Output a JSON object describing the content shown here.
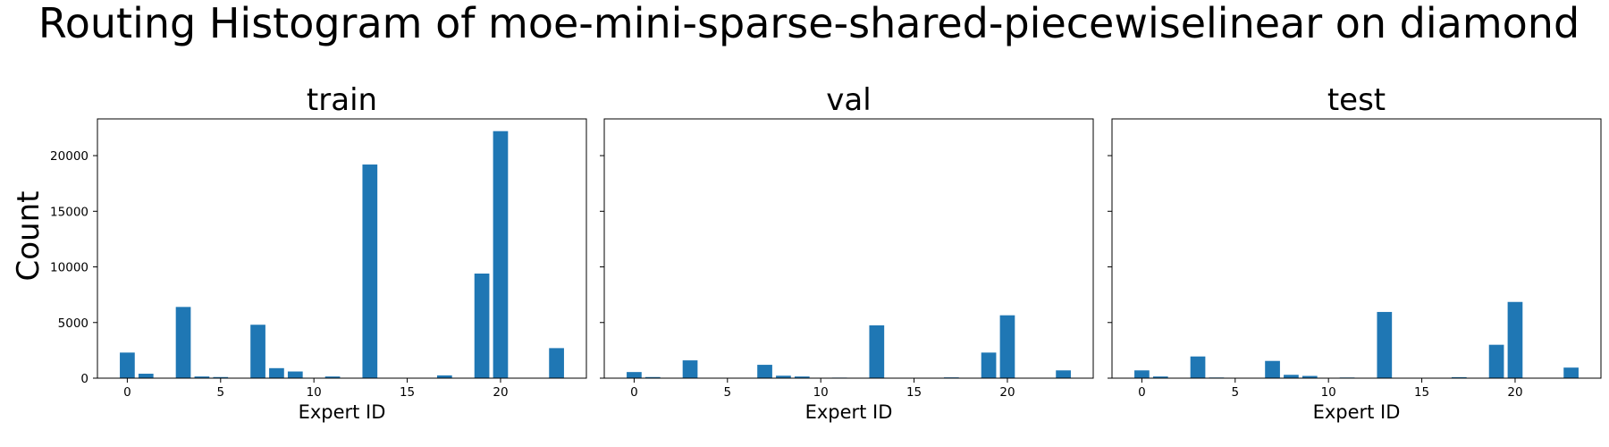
{
  "figure": {
    "title": "Routing Histogram of moe-mini-sparse-shared-piecewiselinear on diamond",
    "ylabel": "Count"
  },
  "colors": {
    "bar": "#1f77b4",
    "axis": "#000000"
  },
  "chart_data": [
    {
      "type": "bar",
      "title": "train",
      "xlabel": "Expert ID",
      "ylabel": "Count",
      "x": [
        0,
        1,
        2,
        3,
        4,
        5,
        6,
        7,
        8,
        9,
        10,
        11,
        12,
        13,
        14,
        15,
        16,
        17,
        18,
        19,
        20,
        21,
        22,
        23
      ],
      "values": [
        2300,
        400,
        0,
        6400,
        150,
        100,
        0,
        4800,
        900,
        600,
        0,
        150,
        0,
        19200,
        0,
        0,
        0,
        250,
        0,
        9400,
        22200,
        0,
        0,
        2700
      ],
      "xticks": [
        0,
        5,
        10,
        15,
        20
      ],
      "yticks": [
        0,
        5000,
        10000,
        15000,
        20000
      ],
      "ylim": [
        0,
        23300
      ],
      "xlim": [
        -1.6,
        24.6
      ],
      "grid": false
    },
    {
      "type": "bar",
      "title": "val",
      "xlabel": "Expert ID",
      "ylabel": "Count",
      "x": [
        0,
        1,
        2,
        3,
        4,
        5,
        6,
        7,
        8,
        9,
        10,
        11,
        12,
        13,
        14,
        15,
        16,
        17,
        18,
        19,
        20,
        21,
        22,
        23
      ],
      "values": [
        550,
        100,
        0,
        1600,
        40,
        20,
        0,
        1200,
        220,
        150,
        0,
        50,
        0,
        4750,
        0,
        0,
        0,
        70,
        0,
        2300,
        5650,
        0,
        0,
        700
      ],
      "xticks": [
        0,
        5,
        10,
        15,
        20
      ],
      "yticks": [
        0,
        5000,
        10000,
        15000,
        20000
      ],
      "ylim": [
        0,
        23300
      ],
      "xlim": [
        -1.6,
        24.6
      ],
      "grid": false
    },
    {
      "type": "bar",
      "title": "test",
      "xlabel": "Expert ID",
      "ylabel": "Count",
      "x": [
        0,
        1,
        2,
        3,
        4,
        5,
        6,
        7,
        8,
        9,
        10,
        11,
        12,
        13,
        14,
        15,
        16,
        17,
        18,
        19,
        20,
        21,
        22,
        23
      ],
      "values": [
        700,
        150,
        0,
        1950,
        60,
        40,
        0,
        1550,
        300,
        200,
        0,
        60,
        0,
        5950,
        0,
        0,
        0,
        90,
        0,
        3000,
        6850,
        0,
        0,
        950
      ],
      "xticks": [
        0,
        5,
        10,
        15,
        20
      ],
      "yticks": [
        0,
        5000,
        10000,
        15000,
        20000
      ],
      "ylim": [
        0,
        23300
      ],
      "xlim": [
        -1.6,
        24.6
      ],
      "grid": false
    }
  ]
}
